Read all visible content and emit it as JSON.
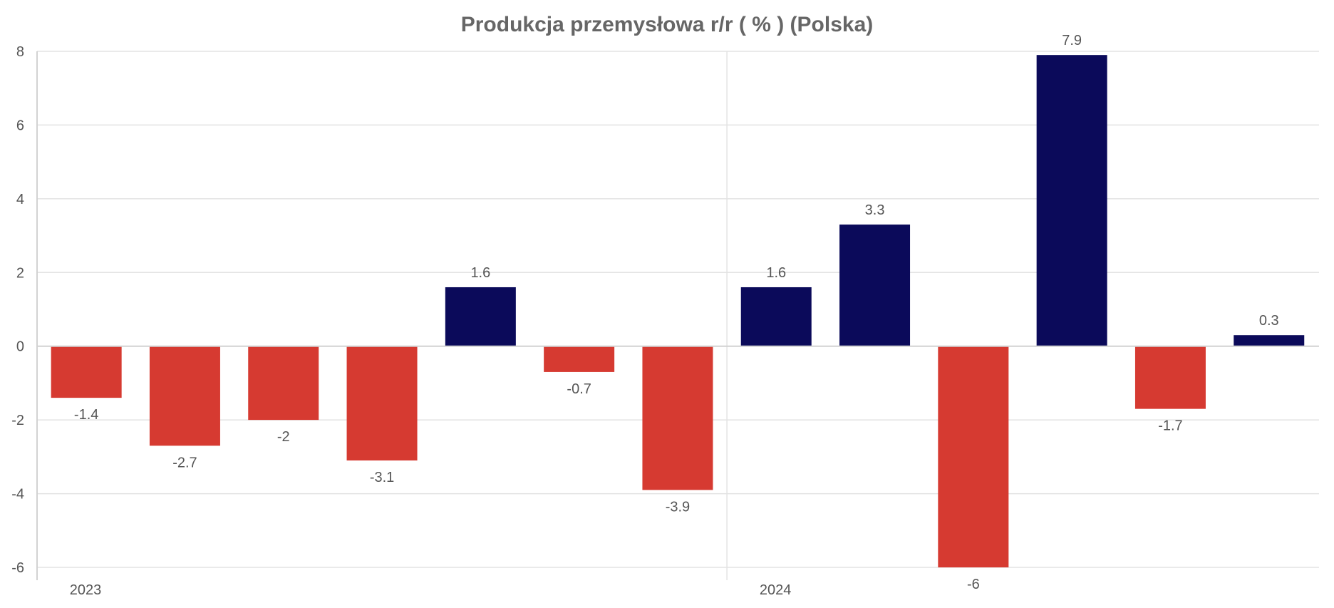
{
  "chart_data": {
    "type": "bar",
    "title": "Produkcja przemysłowa r/r ( % ) (Polska)",
    "xlabel": "",
    "ylabel": "",
    "ylim": [
      -6,
      8
    ],
    "yticks": [
      8,
      6,
      4,
      2,
      0,
      -2,
      -4,
      -6
    ],
    "ytick_labels": [
      "8",
      "6",
      "4",
      "2",
      "0",
      "-2",
      "-4",
      "-6"
    ],
    "x_year_labels": [
      {
        "label": "2023",
        "bar_index": 0
      },
      {
        "label": "2024",
        "bar_index": 7
      }
    ],
    "values": [
      -1.4,
      -2.7,
      -2,
      -3.1,
      1.6,
      -0.7,
      -3.9,
      1.6,
      3.3,
      -6,
      7.9,
      -1.7,
      0.3
    ],
    "value_labels": [
      "-1.4",
      "-2.7",
      "-2",
      "-3.1",
      "1.6",
      "-0.7",
      "-3.9",
      "1.6",
      "3.3",
      "-6",
      "7.9",
      "-1.7",
      "0.3"
    ],
    "grid": true,
    "legend": "none",
    "colors": {
      "positive": "#0b0a5a",
      "negative": "#d63a31",
      "grid": "#e3e3e3",
      "axis": "#d2d2d2",
      "title": "#666666",
      "text": "#555555"
    }
  }
}
